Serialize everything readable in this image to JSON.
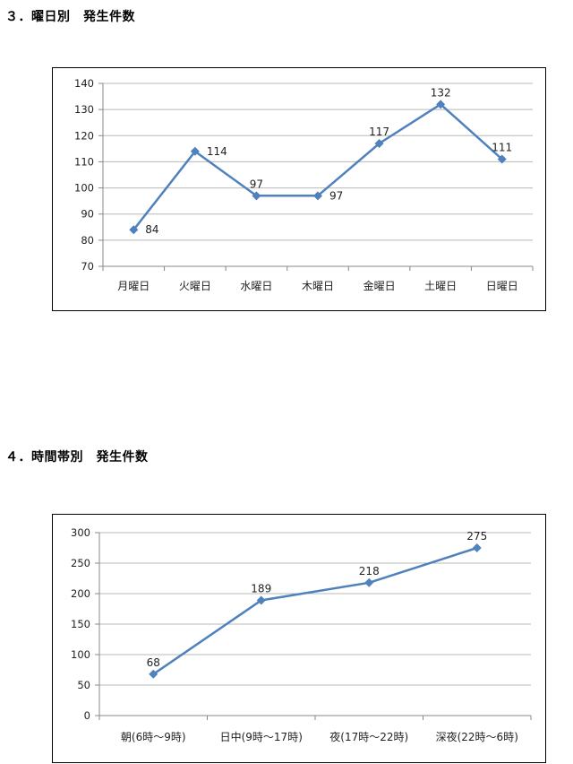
{
  "headings": {
    "weekday": "３．曜日別　発生件数",
    "timeband": "４．時間帯別　発生件数"
  },
  "colors": {
    "series": "#4f81bd",
    "grid": "#b8b8b8"
  },
  "chart_data": [
    {
      "type": "line",
      "title": "",
      "xlabel": "",
      "ylabel": "",
      "categories": [
        "月曜日",
        "火曜日",
        "水曜日",
        "木曜日",
        "金曜日",
        "土曜日",
        "日曜日"
      ],
      "series": [
        {
          "values": [
            84,
            114,
            97,
            97,
            117,
            132,
            111
          ]
        }
      ],
      "ylim": [
        70,
        140
      ],
      "yticks": [
        70,
        80,
        90,
        100,
        110,
        120,
        130,
        140
      ],
      "grid": true,
      "legend": "none",
      "data_labels": true
    },
    {
      "type": "line",
      "title": "",
      "xlabel": "",
      "ylabel": "",
      "categories": [
        "朝(6時～9時)",
        "日中(9時～17時)",
        "夜(17時～22時)",
        "深夜(22時～6時)"
      ],
      "series": [
        {
          "values": [
            68,
            189,
            218,
            275
          ]
        }
      ],
      "ylim": [
        0,
        300
      ],
      "yticks": [
        0,
        50,
        100,
        150,
        200,
        250,
        300
      ],
      "grid": true,
      "legend": "none",
      "data_labels": true
    }
  ]
}
